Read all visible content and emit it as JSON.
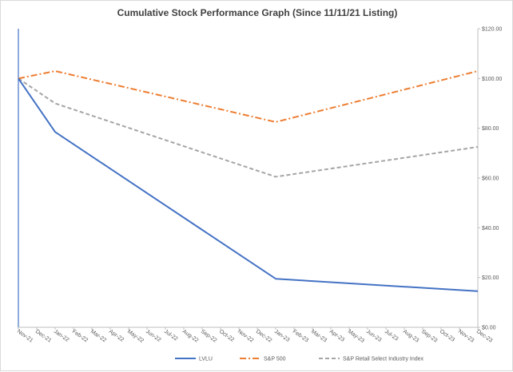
{
  "chart_data": {
    "type": "line",
    "title": "Cumulative Stock Performance Graph (Since 11/11/21 Listing)",
    "x": [
      "Nov-21",
      "Dec-21",
      "Jan-22",
      "Feb-22",
      "Mar-22",
      "Apr-22",
      "May-22",
      "Jun-22",
      "Jul-22",
      "Aug-22",
      "Sep-22",
      "Oct-22",
      "Nov-22",
      "Dec-22",
      "Jan-23",
      "Feb-23",
      "Mar-23",
      "Apr-23",
      "May-23",
      "Jun-23",
      "Jul-23",
      "Aug-23",
      "Sep-23",
      "Oct-23",
      "Nov-23",
      "Dec-23"
    ],
    "y_axis": {
      "side": "right",
      "ylim": [
        0,
        120
      ],
      "ticks": [
        0,
        20,
        40,
        60,
        80,
        100,
        120
      ],
      "tick_labels": [
        "$0.00",
        "$20.00",
        "$40.00",
        "$60.00",
        "$80.00",
        "$100.00",
        "$120.00"
      ]
    },
    "legend_position": "bottom",
    "series": [
      {
        "name": "LVLU",
        "color": "#4472c4",
        "dash": "solid",
        "points": [
          {
            "x": "Nov-21",
            "y": 100
          },
          {
            "x": "Jan-22",
            "y": 78.5
          },
          {
            "x": "Jan-23",
            "y": 19.5
          },
          {
            "x": "Dec-23",
            "y": 14.5
          }
        ]
      },
      {
        "name": "S&P 500",
        "color": "#ed7d31",
        "dash": "dashdot",
        "points": [
          {
            "x": "Nov-21",
            "y": 100
          },
          {
            "x": "Jan-22",
            "y": 103
          },
          {
            "x": "Jan-23",
            "y": 82.5
          },
          {
            "x": "Dec-23",
            "y": 103
          }
        ]
      },
      {
        "name": "S&P Retail Select Industry Index",
        "color": "#a5a5a5",
        "dash": "dash",
        "points": [
          {
            "x": "Nov-21",
            "y": 100
          },
          {
            "x": "Jan-22",
            "y": 90
          },
          {
            "x": "Jan-23",
            "y": 60.5
          },
          {
            "x": "Dec-23",
            "y": 72.5
          }
        ]
      }
    ]
  }
}
